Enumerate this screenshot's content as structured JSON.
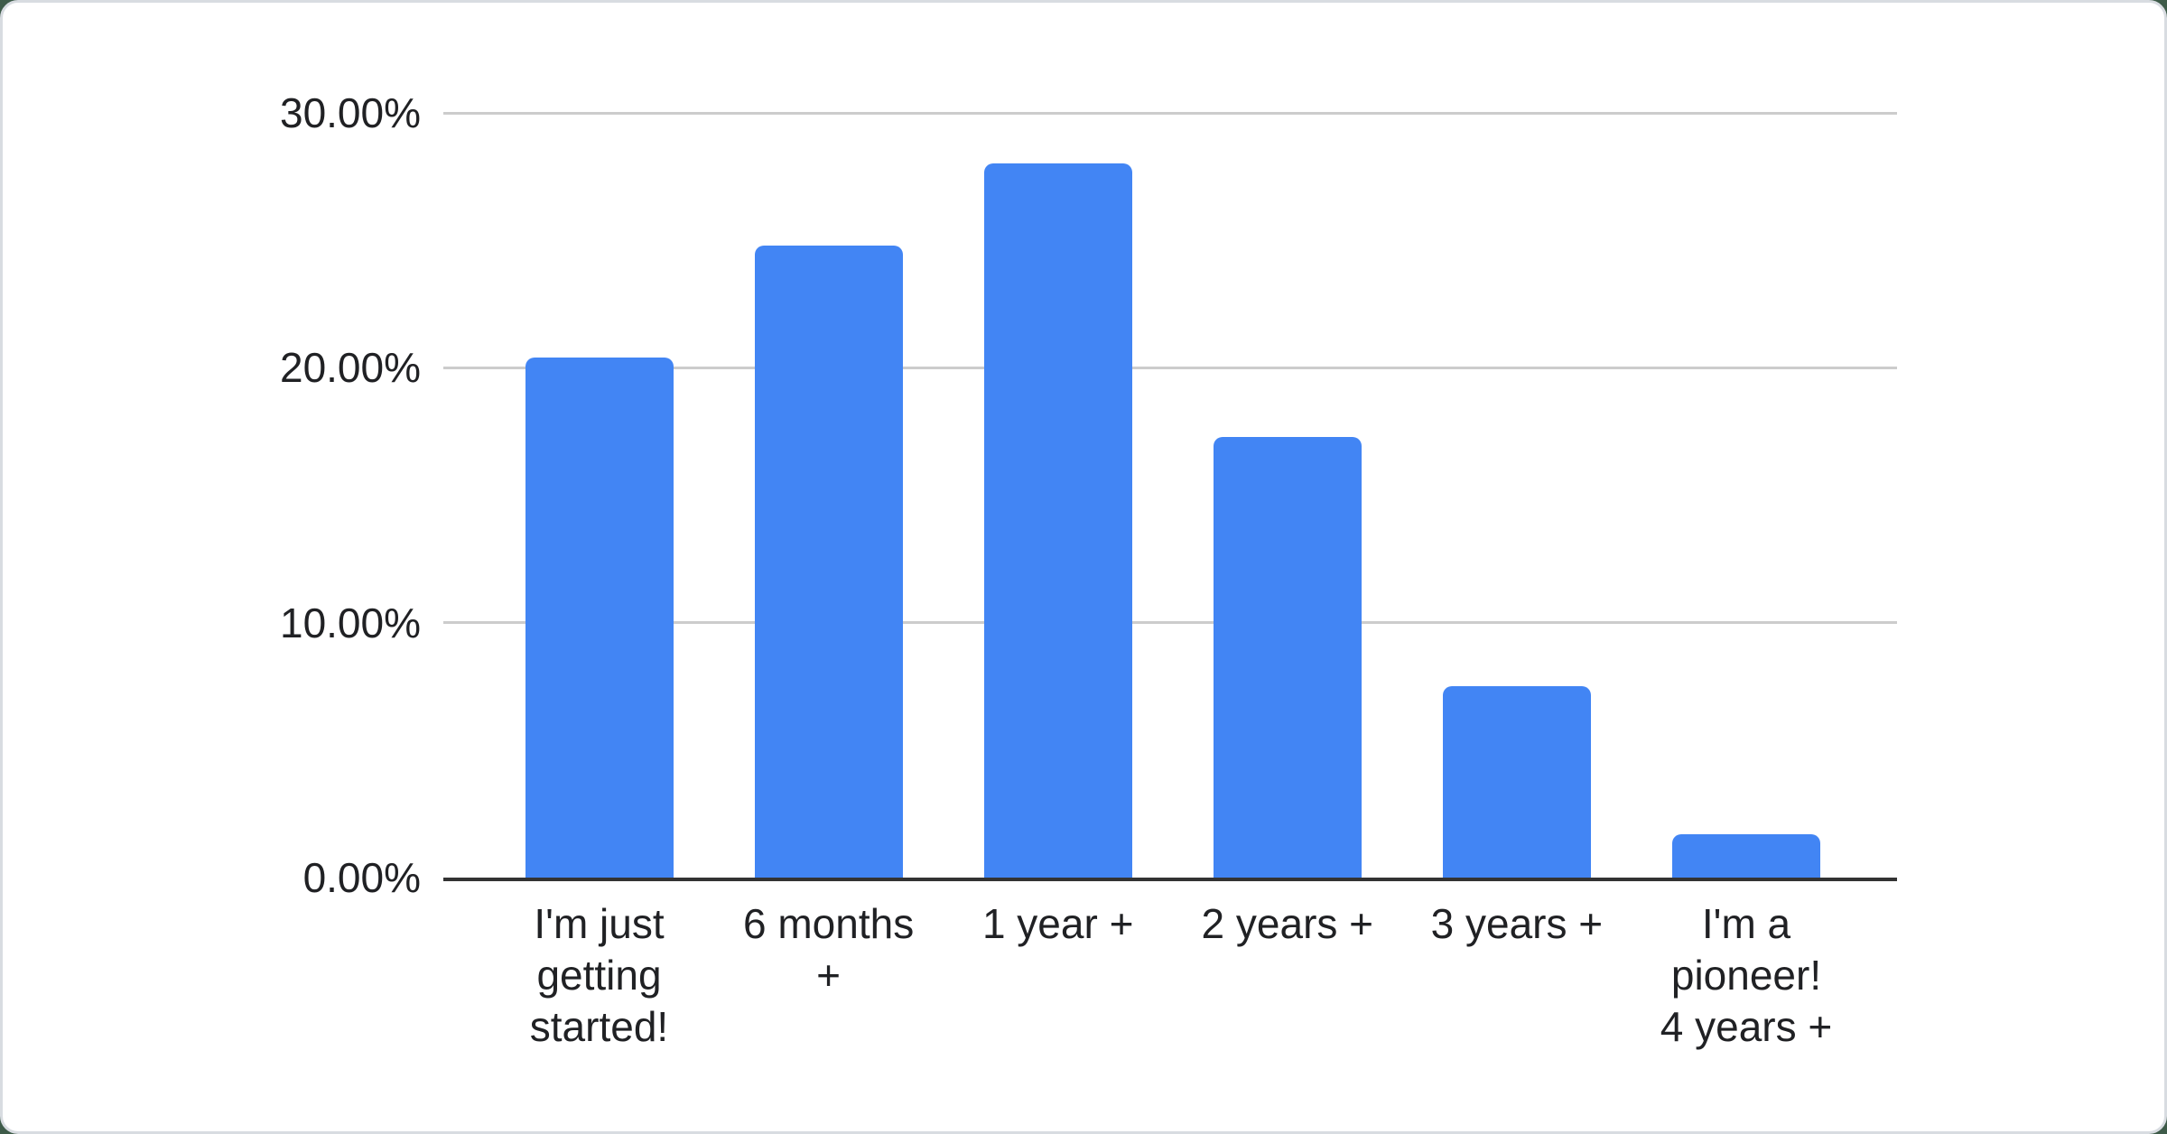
{
  "chart_data": {
    "type": "bar",
    "title": "",
    "xlabel": "",
    "ylabel": "",
    "categories": [
      "I'm just getting started!",
      "6 months +",
      "1 year +",
      "2 years +",
      "3 years +",
      "I'm a pioneer! 4 years +"
    ],
    "category_lines": [
      [
        "I'm just",
        "getting",
        "started!"
      ],
      [
        "6 months",
        "+"
      ],
      [
        "1 year +"
      ],
      [
        "2 years +"
      ],
      [
        "3 years +"
      ],
      [
        "I'm a",
        "pioneer!",
        "4 years +"
      ]
    ],
    "values": [
      20.4,
      24.8,
      28.0,
      17.3,
      7.5,
      1.7
    ],
    "unit": "%",
    "y_tick_labels": [
      "0.00%",
      "10.00%",
      "20.00%",
      "30.00%"
    ],
    "y_tick_values": [
      0,
      10,
      20,
      30
    ],
    "ylim": [
      0,
      30
    ],
    "grid": true,
    "legend": "none"
  },
  "colors": {
    "bar": "#4285f4",
    "gridline": "#cccccc",
    "axis": "#333333",
    "label_text": "#202124",
    "card_background": "#ffffff",
    "card_border": "#d8dce1",
    "page_background": "#3e5b49"
  }
}
